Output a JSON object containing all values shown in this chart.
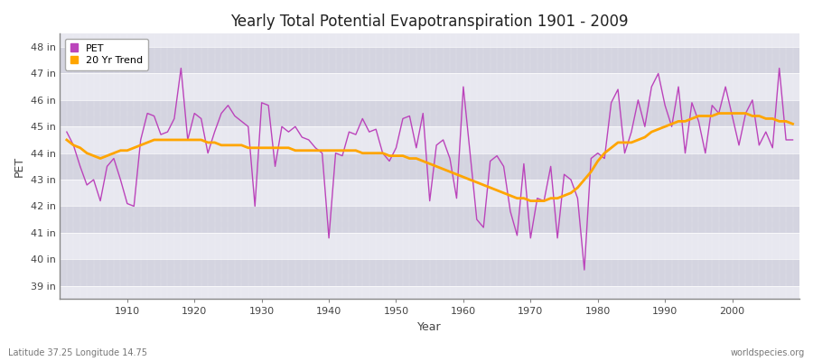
{
  "title": "Yearly Total Potential Evapotranspiration 1901 - 2009",
  "xlabel": "Year",
  "ylabel": "PET",
  "bottom_left_label": "Latitude 37.25 Longitude 14.75",
  "bottom_right_label": "worldspecies.org",
  "pet_color": "#BB44BB",
  "trend_color": "#FFA500",
  "background_color": "#DCDCE8",
  "band_color_light": "#E8E8F0",
  "band_color_dark": "#D4D4E0",
  "ylim": [
    38.5,
    48.5
  ],
  "xlim": [
    1900,
    2010
  ],
  "yticks": [
    39,
    40,
    41,
    42,
    43,
    44,
    45,
    46,
    47,
    48
  ],
  "ytick_labels": [
    "39 in",
    "40 in",
    "41 in",
    "42 in",
    "43 in",
    "44 in",
    "45 in",
    "46 in",
    "47 in",
    "48 in"
  ],
  "xticks": [
    1910,
    1920,
    1930,
    1940,
    1950,
    1960,
    1970,
    1980,
    1990,
    2000
  ],
  "years": [
    1901,
    1902,
    1903,
    1904,
    1905,
    1906,
    1907,
    1908,
    1909,
    1910,
    1911,
    1912,
    1913,
    1914,
    1915,
    1916,
    1917,
    1918,
    1919,
    1920,
    1921,
    1922,
    1923,
    1924,
    1925,
    1926,
    1927,
    1928,
    1929,
    1930,
    1931,
    1932,
    1933,
    1934,
    1935,
    1936,
    1937,
    1938,
    1939,
    1940,
    1941,
    1942,
    1943,
    1944,
    1945,
    1946,
    1947,
    1948,
    1949,
    1950,
    1951,
    1952,
    1953,
    1954,
    1955,
    1956,
    1957,
    1958,
    1959,
    1960,
    1961,
    1962,
    1963,
    1964,
    1965,
    1966,
    1967,
    1968,
    1969,
    1970,
    1971,
    1972,
    1973,
    1974,
    1975,
    1976,
    1977,
    1978,
    1979,
    1980,
    1981,
    1982,
    1983,
    1984,
    1985,
    1986,
    1987,
    1988,
    1989,
    1990,
    1991,
    1992,
    1993,
    1994,
    1995,
    1996,
    1997,
    1998,
    1999,
    2000,
    2001,
    2002,
    2003,
    2004,
    2005,
    2006,
    2007,
    2008,
    2009
  ],
  "pet_values": [
    44.8,
    44.3,
    43.5,
    42.8,
    43.0,
    42.2,
    43.5,
    43.8,
    43.0,
    42.1,
    42.0,
    44.5,
    45.5,
    45.4,
    44.7,
    44.8,
    45.3,
    47.2,
    44.5,
    45.5,
    45.3,
    44.0,
    44.8,
    45.5,
    45.8,
    45.4,
    45.2,
    45.0,
    42.0,
    45.9,
    45.8,
    43.5,
    45.0,
    44.8,
    45.0,
    44.6,
    44.5,
    44.2,
    44.0,
    40.8,
    44.0,
    43.9,
    44.8,
    44.7,
    45.3,
    44.8,
    44.9,
    44.0,
    43.7,
    44.2,
    45.3,
    45.4,
    44.2,
    45.5,
    42.2,
    44.3,
    44.5,
    43.8,
    42.3,
    46.5,
    44.0,
    41.5,
    41.2,
    43.7,
    43.9,
    43.5,
    41.8,
    40.9,
    43.6,
    40.8,
    42.3,
    42.2,
    43.5,
    40.8,
    43.2,
    43.0,
    42.3,
    39.6,
    43.8,
    44.0,
    43.8,
    45.9,
    46.4,
    44.0,
    44.8,
    46.0,
    45.0,
    46.5,
    47.0,
    45.8,
    45.0,
    46.5,
    44.0,
    45.9,
    45.2,
    44.0,
    45.8,
    45.5,
    46.5,
    45.4,
    44.3,
    45.5,
    46.0,
    44.3,
    44.8,
    44.2,
    47.2,
    44.5,
    44.5
  ],
  "trend_values": [
    44.5,
    44.3,
    44.2,
    44.0,
    43.9,
    43.8,
    43.9,
    44.0,
    44.1,
    44.1,
    44.2,
    44.3,
    44.4,
    44.5,
    44.5,
    44.5,
    44.5,
    44.5,
    44.5,
    44.5,
    44.5,
    44.4,
    44.4,
    44.3,
    44.3,
    44.3,
    44.3,
    44.2,
    44.2,
    44.2,
    44.2,
    44.2,
    44.2,
    44.2,
    44.1,
    44.1,
    44.1,
    44.1,
    44.1,
    44.1,
    44.1,
    44.1,
    44.1,
    44.1,
    44.0,
    44.0,
    44.0,
    44.0,
    43.9,
    43.9,
    43.9,
    43.8,
    43.8,
    43.7,
    43.6,
    43.5,
    43.4,
    43.3,
    43.2,
    43.1,
    43.0,
    42.9,
    42.8,
    42.7,
    42.6,
    42.5,
    42.4,
    42.3,
    42.3,
    42.2,
    42.2,
    42.2,
    42.3,
    42.3,
    42.4,
    42.5,
    42.7,
    43.0,
    43.3,
    43.7,
    44.0,
    44.2,
    44.4,
    44.4,
    44.4,
    44.5,
    44.6,
    44.8,
    44.9,
    45.0,
    45.1,
    45.2,
    45.2,
    45.3,
    45.4,
    45.4,
    45.4,
    45.5,
    45.5,
    45.5,
    45.5,
    45.5,
    45.4,
    45.4,
    45.3,
    45.3,
    45.2,
    45.2,
    45.1
  ]
}
